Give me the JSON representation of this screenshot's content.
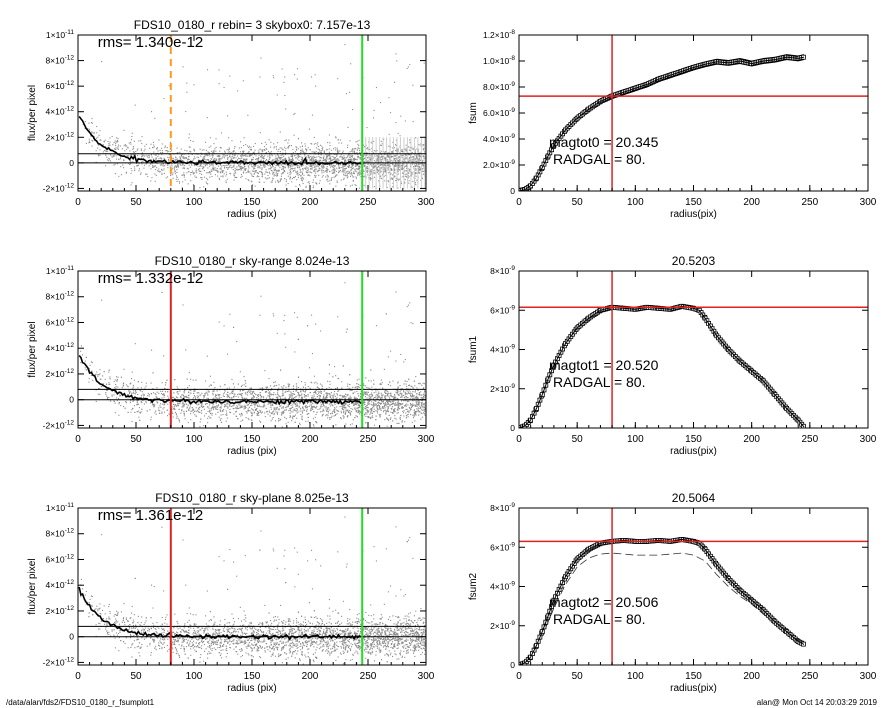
{
  "footer": {
    "path": "/data/alan/fds2/FDS10_0180_r_fsumplot1",
    "stamp": "alan@  Mon Oct 14 20:03:29 2019"
  },
  "chart_data": [
    {
      "type": "scatter",
      "id": "profile-1",
      "title": "FDS10_0180_r rebin= 3    skybox0:  7.157e-13",
      "annotation": "rms= 1.340e-12",
      "xlabel": "radius (pix)",
      "ylabel": "flux/per pixel",
      "xlim": [
        0,
        300
      ],
      "ylim": [
        -2.2e-12,
        1e-11
      ],
      "xticks": [
        0,
        50,
        100,
        150,
        200,
        250,
        300
      ],
      "yticks": [
        {
          "v": -2e-12,
          "m": "-2",
          "e": "-12"
        },
        {
          "v": 0,
          "m": "0",
          "e": ""
        },
        {
          "v": 2e-12,
          "m": "2",
          "e": "-12"
        },
        {
          "v": 4e-12,
          "m": "4",
          "e": "-12"
        },
        {
          "v": 6e-12,
          "m": "6",
          "e": "-12"
        },
        {
          "v": 8e-12,
          "m": "8",
          "e": "-12"
        },
        {
          "v": 1e-11,
          "m": "1",
          "e": "-11",
          "pre": "1×10"
        }
      ],
      "hlines": [
        0,
        7.157e-13
      ],
      "vlines": [
        {
          "x": 80,
          "color": "#ff9a1f",
          "style": "dashed"
        },
        {
          "x": 245,
          "color": "#22dd22",
          "style": "solid"
        }
      ],
      "profile": {
        "peak": 3.9e-12,
        "scale": 20,
        "floor": 0,
        "noise": 1.34e-12
      },
      "error_bars_after": 245
    },
    {
      "type": "line",
      "id": "fsum-1",
      "title": "",
      "annotation_lines": [
        "magtot0 =  20.345",
        "RADGAL =     80."
      ],
      "xlabel": "radius(pix)",
      "ylabel": "fsum",
      "xlim": [
        0,
        300
      ],
      "ylim": [
        0,
        1.2e-08
      ],
      "xticks": [
        0,
        50,
        100,
        150,
        200,
        250,
        300
      ],
      "yticks": [
        {
          "v": 0,
          "m": "0",
          "e": ""
        },
        {
          "v": 2e-09,
          "m": "2.0×10",
          "e": "-9"
        },
        {
          "v": 4e-09,
          "m": "4.0×10",
          "e": "-9"
        },
        {
          "v": 6e-09,
          "m": "6.0×10",
          "e": "-9"
        },
        {
          "v": 8e-09,
          "m": "8.0×10",
          "e": "-9"
        },
        {
          "v": 1e-08,
          "m": "1.0×10",
          "e": "-8"
        },
        {
          "v": 1.2e-08,
          "m": "1.2×10",
          "e": "-8"
        }
      ],
      "crosshair": {
        "x": 80,
        "y": 7.3e-09,
        "color": "#dd2222"
      },
      "curve": {
        "x": [
          0,
          5,
          10,
          15,
          20,
          25,
          30,
          40,
          50,
          60,
          70,
          80,
          90,
          100,
          110,
          120,
          130,
          140,
          150,
          160,
          170,
          180,
          190,
          200,
          210,
          220,
          230,
          240,
          245
        ],
        "y": [
          0,
          1e-10,
          4e-10,
          1e-09,
          1.8e-09,
          2.7e-09,
          3.5e-09,
          4.7e-09,
          5.6e-09,
          6.3e-09,
          6.9e-09,
          7.3e-09,
          7.6e-09,
          7.9e-09,
          8.2e-09,
          8.6e-09,
          8.9e-09,
          9.2e-09,
          9.5e-09,
          9.75e-09,
          9.95e-09,
          9.85e-09,
          1e-08,
          9.8e-09,
          1e-08,
          1.01e-08,
          1.03e-08,
          1.02e-08,
          1.03e-08
        ]
      },
      "envelope": 2e-10
    },
    {
      "type": "scatter",
      "id": "profile-2",
      "title": "FDS10_0180_r sky-range  8.024e-13",
      "annotation": "rms= 1.332e-12",
      "xlabel": "radius (pix)",
      "ylabel": "flux/per pixel",
      "xlim": [
        0,
        300
      ],
      "ylim": [
        -2.2e-12,
        1e-11
      ],
      "xticks": [
        0,
        50,
        100,
        150,
        200,
        250,
        300
      ],
      "yticks": [
        {
          "v": -2e-12,
          "m": "-2",
          "e": "-12"
        },
        {
          "v": 0,
          "m": "0",
          "e": ""
        },
        {
          "v": 2e-12,
          "m": "2",
          "e": "-12"
        },
        {
          "v": 4e-12,
          "m": "4",
          "e": "-12"
        },
        {
          "v": 6e-12,
          "m": "6",
          "e": "-12"
        },
        {
          "v": 8e-12,
          "m": "8",
          "e": "-12"
        },
        {
          "v": 1e-11,
          "m": "1",
          "e": "-11",
          "pre": "1×10"
        }
      ],
      "hlines": [
        0,
        8.024e-13
      ],
      "vlines": [
        {
          "x": 80,
          "color": "#dd2222",
          "style": "solid"
        },
        {
          "x": 245,
          "color": "#22dd22",
          "style": "solid"
        }
      ],
      "profile": {
        "peak": 3.8e-12,
        "scale": 20,
        "floor": -1.5e-13,
        "noise": 1.33e-12
      },
      "error_bars_after": 9999
    },
    {
      "type": "line",
      "id": "fsum-2",
      "title": "20.5203",
      "annotation_lines": [
        "magtot1 =  20.520",
        "RADGAL =     80."
      ],
      "xlabel": "radius(pix)",
      "ylabel": "fsum1",
      "xlim": [
        0,
        300
      ],
      "ylim": [
        0,
        8e-09
      ],
      "xticks": [
        0,
        50,
        100,
        150,
        200,
        250,
        300
      ],
      "yticks": [
        {
          "v": 0,
          "m": "0",
          "e": ""
        },
        {
          "v": 2e-09,
          "m": "2×10",
          "e": "-9"
        },
        {
          "v": 4e-09,
          "m": "4×10",
          "e": "-9"
        },
        {
          "v": 6e-09,
          "m": "6×10",
          "e": "-9"
        },
        {
          "v": 8e-09,
          "m": "8×10",
          "e": "-9"
        }
      ],
      "crosshair": {
        "x": 80,
        "y": 6.15e-09,
        "color": "#dd2222"
      },
      "curve": {
        "x": [
          0,
          5,
          10,
          15,
          20,
          25,
          30,
          40,
          50,
          60,
          70,
          80,
          90,
          100,
          110,
          120,
          130,
          140,
          150,
          155,
          160,
          170,
          180,
          190,
          200,
          210,
          220,
          230,
          240,
          245
        ],
        "y": [
          0,
          1e-10,
          4e-10,
          1e-09,
          1.7e-09,
          2.5e-09,
          3.2e-09,
          4.3e-09,
          5.1e-09,
          5.6e-09,
          6e-09,
          6.15e-09,
          6.1e-09,
          6.05e-09,
          6.15e-09,
          6.1e-09,
          6.05e-09,
          6.2e-09,
          6.1e-09,
          6e-09,
          5.6e-09,
          4.7e-09,
          4e-09,
          3.4e-09,
          2.9e-09,
          2.4e-09,
          1.7e-09,
          1e-09,
          4e-10,
          5e-11
        ]
      },
      "envelope": 0
    },
    {
      "type": "scatter",
      "id": "profile-3",
      "title": "FDS10_0180_r sky-plane  8.025e-13",
      "annotation": "rms= 1.361e-12",
      "xlabel": "radius (pix)",
      "ylabel": "flux/per pixel",
      "xlim": [
        0,
        300
      ],
      "ylim": [
        -2.2e-12,
        1e-11
      ],
      "xticks": [
        0,
        50,
        100,
        150,
        200,
        250,
        300
      ],
      "yticks": [
        {
          "v": -2e-12,
          "m": "-2",
          "e": "-12"
        },
        {
          "v": 0,
          "m": "0",
          "e": ""
        },
        {
          "v": 2e-12,
          "m": "2",
          "e": "-12"
        },
        {
          "v": 4e-12,
          "m": "4",
          "e": "-12"
        },
        {
          "v": 6e-12,
          "m": "6",
          "e": "-12"
        },
        {
          "v": 8e-12,
          "m": "8",
          "e": "-12"
        },
        {
          "v": 1e-11,
          "m": "1",
          "e": "-11",
          "pre": "1×10"
        }
      ],
      "hlines": [
        0,
        8.025e-13
      ],
      "vlines": [
        {
          "x": 80,
          "color": "#dd2222",
          "style": "solid"
        },
        {
          "x": 245,
          "color": "#22dd22",
          "style": "solid"
        }
      ],
      "profile": {
        "peak": 3.9e-12,
        "scale": 20,
        "floor": 0,
        "noise": 1.36e-12
      },
      "error_bars_after": 9999
    },
    {
      "type": "line",
      "id": "fsum-3",
      "title": "20.5064",
      "annotation_lines": [
        "magtot2 =  20.506",
        "RADGAL =     80."
      ],
      "xlabel": "radius(pix)",
      "ylabel": "fsum2",
      "xlim": [
        0,
        300
      ],
      "ylim": [
        0,
        8e-09
      ],
      "xticks": [
        0,
        50,
        100,
        150,
        200,
        250,
        300
      ],
      "yticks": [
        {
          "v": 0,
          "m": "0",
          "e": ""
        },
        {
          "v": 2e-09,
          "m": "2×10",
          "e": "-9"
        },
        {
          "v": 4e-09,
          "m": "4×10",
          "e": "-9"
        },
        {
          "v": 6e-09,
          "m": "6×10",
          "e": "-9"
        },
        {
          "v": 8e-09,
          "m": "8×10",
          "e": "-9"
        }
      ],
      "crosshair": {
        "x": 80,
        "y": 6.3e-09,
        "color": "#dd2222"
      },
      "curve": {
        "x": [
          0,
          5,
          10,
          15,
          20,
          25,
          30,
          40,
          50,
          60,
          70,
          80,
          90,
          100,
          110,
          120,
          130,
          140,
          150,
          155,
          160,
          170,
          180,
          190,
          200,
          210,
          220,
          230,
          240,
          245
        ],
        "y": [
          0,
          1e-10,
          4e-10,
          1e-09,
          1.7e-09,
          2.5e-09,
          3.3e-09,
          4.5e-09,
          5.4e-09,
          5.9e-09,
          6.2e-09,
          6.3e-09,
          6.35e-09,
          6.3e-09,
          6.3e-09,
          6.35e-09,
          6.3e-09,
          6.4e-09,
          6.3e-09,
          6.2e-09,
          5.9e-09,
          5.1e-09,
          4.4e-09,
          3.8e-09,
          3.3e-09,
          2.8e-09,
          2.2e-09,
          1.7e-09,
          1.2e-09,
          1.05e-09
        ]
      },
      "dashed_curve": {
        "x": [
          0,
          10,
          20,
          30,
          40,
          50,
          60,
          70,
          80,
          100,
          120,
          140,
          150,
          160,
          170,
          180,
          190,
          200,
          210,
          220,
          230
        ],
        "y": [
          0,
          3.5e-10,
          1.5e-09,
          2.9e-09,
          4.1e-09,
          5e-09,
          5.45e-09,
          5.65e-09,
          5.7e-09,
          5.6e-09,
          5.6e-09,
          5.7e-09,
          5.6e-09,
          5.3e-09,
          4.6e-09,
          4e-09,
          3.5e-09,
          3.1e-09,
          2.6e-09,
          2.1e-09,
          1.6e-09
        ]
      },
      "envelope": 0
    }
  ]
}
